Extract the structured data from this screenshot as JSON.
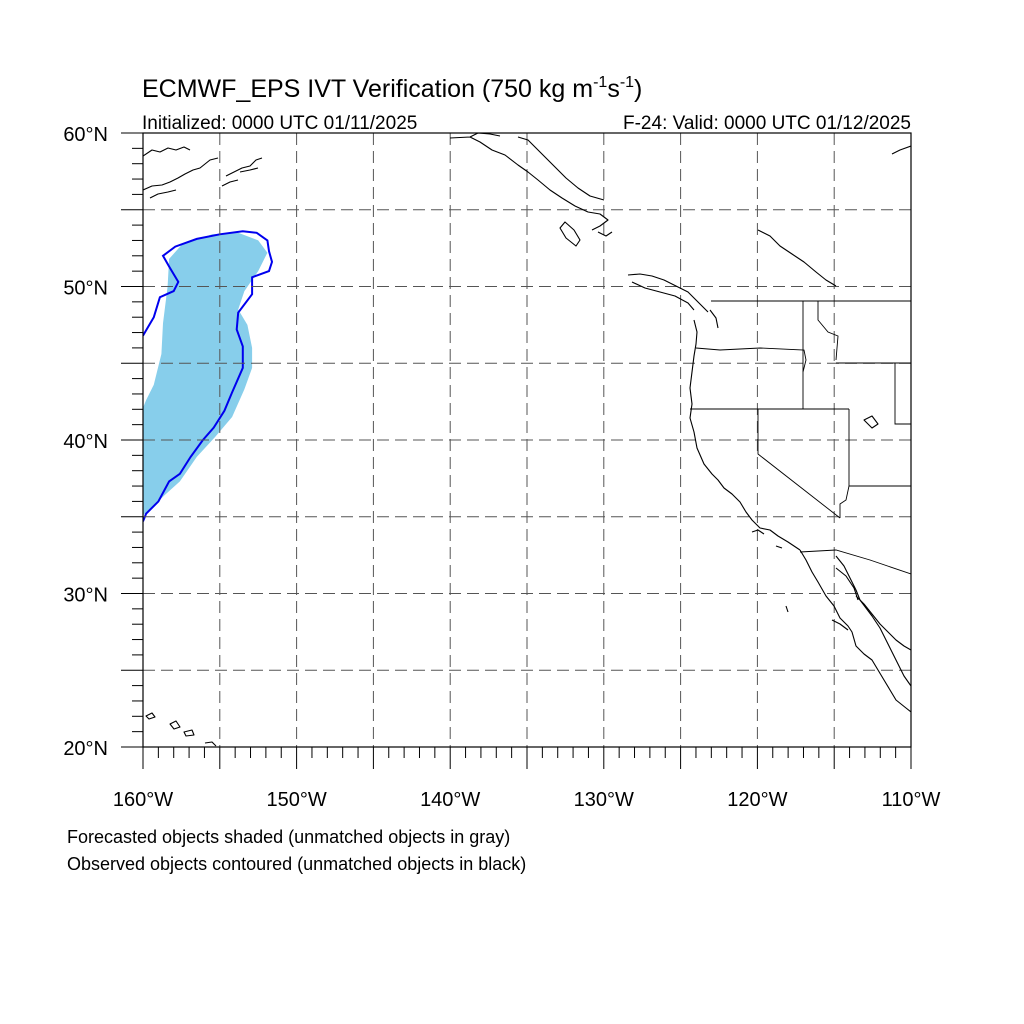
{
  "figure": {
    "title_main": "ECMWF_EPS IVT Verification (750 kg m",
    "title_sup1": "-1",
    "title_mid": "s",
    "title_sup2": "-1",
    "title_end": ")",
    "initialized": "Initialized: 0000 UTC 01/11/2025",
    "valid": "F-24: Valid: 0000 UTC 01/12/2025",
    "footnote_1": "Forecasted objects shaded (unmatched objects in gray)",
    "footnote_2": "Observed objects contoured (unmatched objects in black)"
  },
  "map": {
    "lon_range": [
      -160,
      -110
    ],
    "lat_range": [
      20,
      60
    ],
    "lon_labels": [
      "160°W",
      "150°W",
      "140°W",
      "130°W",
      "120°W",
      "110°W"
    ],
    "lat_labels": [
      "60°N",
      "50°N",
      "40°N",
      "30°N",
      "20°N"
    ],
    "colors": {
      "forecast_fill": "#87ceeb",
      "observed_contour": "#0000ee",
      "coastline": "#000000"
    }
  },
  "objects": {
    "forecasted": [
      {
        "name": "forecast-ivt-object",
        "matched": true,
        "polygon": [
          [
            -159.8,
            42.6
          ],
          [
            -159.3,
            43.6
          ],
          [
            -158.8,
            45.6
          ],
          [
            -158.7,
            47.6
          ],
          [
            -158.4,
            50.0
          ],
          [
            -158.3,
            51.8
          ],
          [
            -157.5,
            52.7
          ],
          [
            -155.5,
            53.4
          ],
          [
            -153.8,
            53.5
          ],
          [
            -152.5,
            53.0
          ],
          [
            -151.9,
            52.2
          ],
          [
            -152.5,
            51.0
          ],
          [
            -153.4,
            49.7
          ],
          [
            -153.8,
            48.5
          ],
          [
            -153.2,
            47.5
          ],
          [
            -152.9,
            46.0
          ],
          [
            -152.9,
            44.7
          ],
          [
            -153.4,
            43.3
          ],
          [
            -154.2,
            41.5
          ],
          [
            -155.3,
            40.2
          ],
          [
            -156.5,
            38.9
          ],
          [
            -157.6,
            37.3
          ],
          [
            -158.6,
            36.4
          ],
          [
            -159.4,
            35.6
          ],
          [
            -160.0,
            35.1
          ],
          [
            -160.0,
            42.1
          ]
        ]
      }
    ],
    "observed": [
      {
        "name": "observed-ivt-contour",
        "matched": true,
        "polygon": [
          [
            -160.0,
            46.8
          ],
          [
            -159.3,
            48.0
          ],
          [
            -158.9,
            49.3
          ],
          [
            -158.0,
            49.7
          ],
          [
            -157.7,
            50.3
          ],
          [
            -158.3,
            51.3
          ],
          [
            -158.7,
            52.0
          ],
          [
            -157.9,
            52.6
          ],
          [
            -156.5,
            53.1
          ],
          [
            -155.0,
            53.4
          ],
          [
            -153.5,
            53.6
          ],
          [
            -152.6,
            53.5
          ],
          [
            -151.9,
            53.0
          ],
          [
            -151.8,
            52.3
          ],
          [
            -151.6,
            51.6
          ],
          [
            -151.8,
            51.0
          ],
          [
            -152.9,
            50.6
          ],
          [
            -152.9,
            49.5
          ],
          [
            -153.8,
            48.3
          ],
          [
            -153.9,
            47.2
          ],
          [
            -153.5,
            46.1
          ],
          [
            -153.5,
            44.7
          ],
          [
            -154.2,
            43.1
          ],
          [
            -154.7,
            41.9
          ],
          [
            -155.4,
            40.8
          ],
          [
            -156.1,
            40.0
          ],
          [
            -156.9,
            38.9
          ],
          [
            -157.6,
            37.8
          ],
          [
            -158.3,
            37.3
          ],
          [
            -159.0,
            36.0
          ],
          [
            -159.8,
            35.2
          ],
          [
            -160.0,
            34.7
          ]
        ]
      }
    ]
  }
}
